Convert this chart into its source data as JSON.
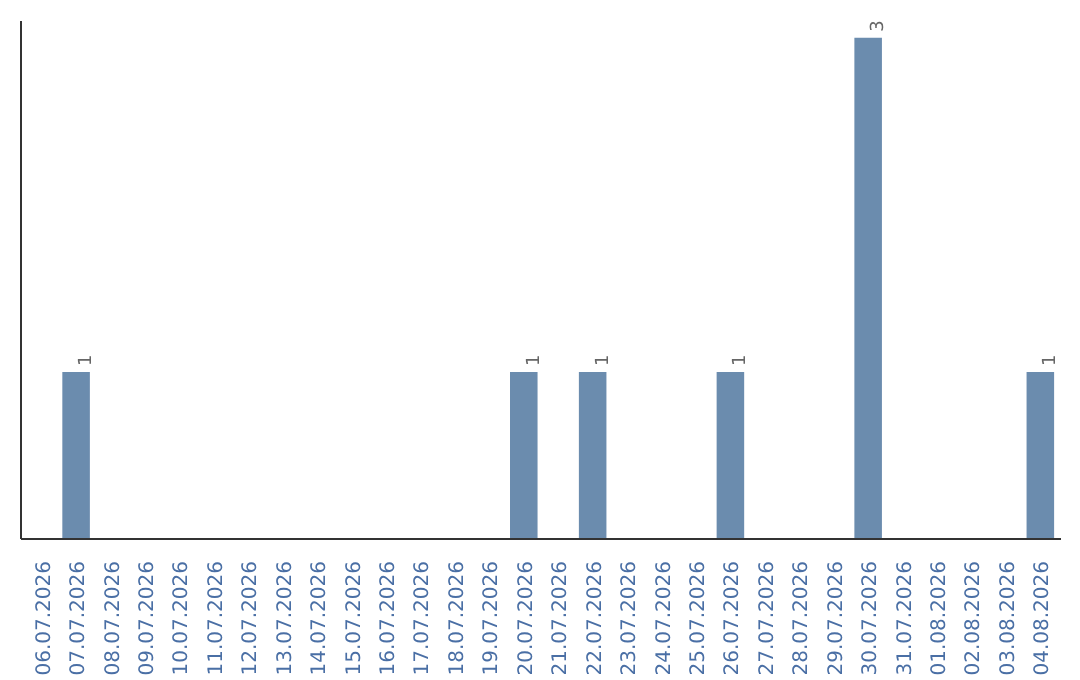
{
  "chart_data": {
    "type": "bar",
    "categories": [
      "06.07.2026",
      "07.07.2026",
      "08.07.2026",
      "09.07.2026",
      "10.07.2026",
      "11.07.2026",
      "12.07.2026",
      "13.07.2026",
      "14.07.2026",
      "15.07.2026",
      "16.07.2026",
      "17.07.2026",
      "18.07.2026",
      "19.07.2026",
      "20.07.2026",
      "21.07.2026",
      "22.07.2026",
      "23.07.2026",
      "24.07.2026",
      "25.07.2026",
      "26.07.2026",
      "27.07.2026",
      "28.07.2026",
      "29.07.2026",
      "30.07.2026",
      "31.07.2026",
      "01.08.2026",
      "02.08.2026",
      "03.08.2026",
      "04.08.2026"
    ],
    "values": [
      0,
      1,
      0,
      0,
      0,
      0,
      0,
      0,
      0,
      0,
      0,
      0,
      0,
      0,
      1,
      0,
      1,
      0,
      0,
      0,
      1,
      0,
      0,
      0,
      3,
      0,
      0,
      0,
      0,
      1
    ],
    "value_labels": [
      null,
      "1",
      null,
      null,
      null,
      null,
      null,
      null,
      null,
      null,
      null,
      null,
      null,
      null,
      "1",
      null,
      "1",
      null,
      null,
      null,
      "1",
      null,
      null,
      null,
      "3",
      null,
      null,
      null,
      null,
      "1"
    ],
    "color": "#6b8cae",
    "ylim": [
      0,
      3.1
    ],
    "tick_labels": "x",
    "grid": false
  }
}
